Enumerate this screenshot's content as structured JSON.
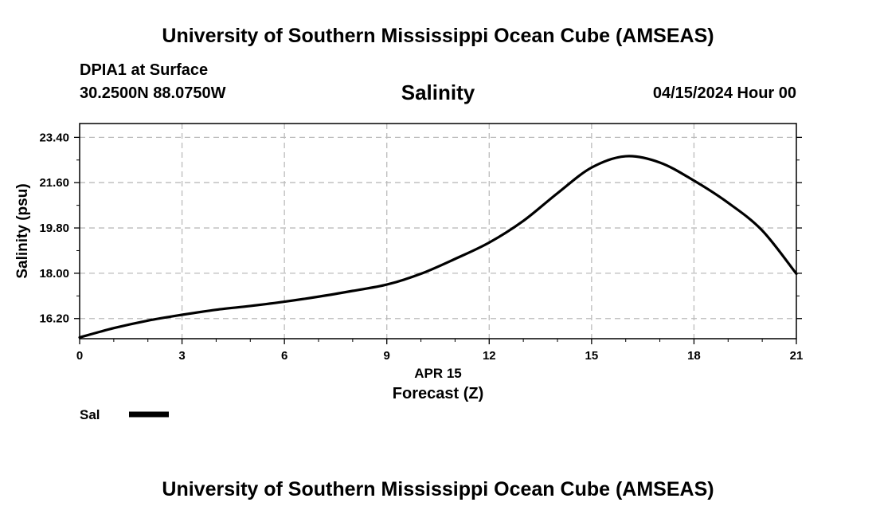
{
  "header": {
    "title": "University of Southern Mississippi Ocean Cube (AMSEAS)",
    "station": "DPIA1 at Surface",
    "coords": "30.2500N  88.0750W",
    "variable": "Salinity",
    "datetime": "04/15/2024 Hour 00"
  },
  "footer": {
    "title": "University of Southern Mississippi Ocean Cube (AMSEAS)"
  },
  "legend": {
    "label": "Sal"
  },
  "colors": {
    "line": "#000000",
    "grid": "#bbbbbb"
  },
  "chart_data": {
    "type": "line",
    "title": "Salinity",
    "xlabel": "Forecast (Z)",
    "xdate": "APR 15",
    "ylabel": "Salinity (psu)",
    "xlim": [
      0,
      21
    ],
    "ylim": [
      15.4,
      23.95
    ],
    "xticks": [
      0,
      3,
      6,
      9,
      12,
      15,
      18,
      21
    ],
    "yticks": [
      16.2,
      18.0,
      19.8,
      21.6,
      23.4
    ],
    "ytick_labels": [
      "16.20",
      "18.00",
      "19.80",
      "21.60",
      "23.40"
    ],
    "grid": true,
    "legend_position": "bottom-left",
    "series": [
      {
        "name": "Sal",
        "x": [
          0,
          1,
          2,
          3,
          4,
          5,
          6,
          7,
          8,
          9,
          10,
          11,
          12,
          13,
          14,
          15,
          16,
          17,
          18,
          19,
          20,
          21
        ],
        "y": [
          15.45,
          15.82,
          16.12,
          16.35,
          16.55,
          16.7,
          16.87,
          17.07,
          17.3,
          17.55,
          17.98,
          18.57,
          19.22,
          20.08,
          21.18,
          22.2,
          22.65,
          22.4,
          21.68,
          20.8,
          19.7,
          17.98
        ]
      }
    ]
  }
}
